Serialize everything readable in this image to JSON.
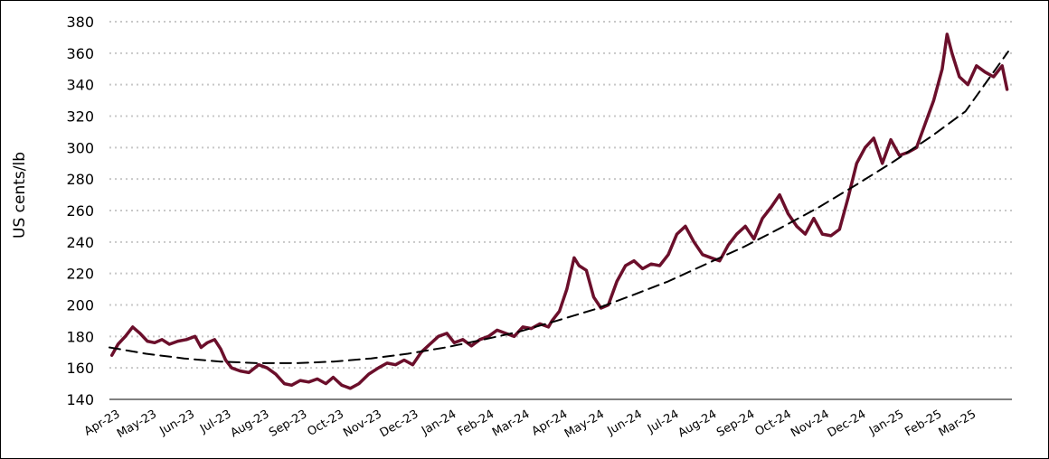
{
  "chart_data": {
    "type": "line",
    "title": "",
    "xlabel": "",
    "ylabel": "US cents/lb",
    "ylim": [
      140,
      380
    ],
    "yticks": [
      140,
      160,
      180,
      200,
      220,
      240,
      260,
      280,
      300,
      320,
      340,
      360,
      380
    ],
    "xticks": [
      "Apr-23",
      "May-23",
      "Jun-23",
      "Jul-23",
      "Aug-23",
      "Sep-23",
      "Oct-23",
      "Nov-23",
      "Dec-23",
      "Jan-24",
      "Feb-24",
      "Mar-24",
      "Apr-24",
      "May-24",
      "Jun-24",
      "Jul-24",
      "Aug-24",
      "Sep-24",
      "Oct-24",
      "Nov-24",
      "Dec-24",
      "Jan-25",
      "Feb-25",
      "Mar-25"
    ],
    "xlim": [
      "2023-04-01",
      "2025-04-08"
    ],
    "grid": "horizontal-dotted",
    "legend": "none",
    "colors": {
      "price": "#6b0f2b",
      "trend": "#000000",
      "grid": "#c8c8c8"
    },
    "series": [
      {
        "style": "solid",
        "x": [
          "2023-04-03",
          "2023-04-08",
          "2023-04-14",
          "2023-04-20",
          "2023-04-26",
          "2023-05-02",
          "2023-05-08",
          "2023-05-14",
          "2023-05-20",
          "2023-05-27",
          "2023-06-03",
          "2023-06-10",
          "2023-06-15",
          "2023-06-20",
          "2023-06-26",
          "2023-07-01",
          "2023-07-05",
          "2023-07-10",
          "2023-07-17",
          "2023-07-24",
          "2023-08-01",
          "2023-08-08",
          "2023-08-15",
          "2023-08-22",
          "2023-08-28",
          "2023-09-04",
          "2023-09-11",
          "2023-09-18",
          "2023-09-25",
          "2023-10-01",
          "2023-10-08",
          "2023-10-15",
          "2023-10-22",
          "2023-10-30",
          "2023-11-07",
          "2023-11-14",
          "2023-11-21",
          "2023-11-28",
          "2023-12-05",
          "2023-12-12",
          "2023-12-19",
          "2023-12-26",
          "2024-01-02",
          "2024-01-08",
          "2024-01-15",
          "2024-01-22",
          "2024-01-29",
          "2024-02-05",
          "2024-02-12",
          "2024-02-19",
          "2024-02-26",
          "2024-03-04",
          "2024-03-11",
          "2024-03-18",
          "2024-03-25",
          "2024-03-28",
          "2024-04-03",
          "2024-04-09",
          "2024-04-15",
          "2024-04-19",
          "2024-04-25",
          "2024-05-01",
          "2024-05-07",
          "2024-05-13",
          "2024-05-20",
          "2024-05-27",
          "2024-06-03",
          "2024-06-10",
          "2024-06-17",
          "2024-06-24",
          "2024-07-01",
          "2024-07-08",
          "2024-07-15",
          "2024-07-22",
          "2024-07-29",
          "2024-08-05",
          "2024-08-12",
          "2024-08-19",
          "2024-08-26",
          "2024-09-02",
          "2024-09-09",
          "2024-09-16",
          "2024-09-23",
          "2024-09-30",
          "2024-10-07",
          "2024-10-14",
          "2024-10-21",
          "2024-10-28",
          "2024-11-04",
          "2024-11-11",
          "2024-11-18",
          "2024-11-25",
          "2024-12-02",
          "2024-12-09",
          "2024-12-16",
          "2024-12-23",
          "2024-12-30",
          "2025-01-06",
          "2025-01-13",
          "2025-01-20",
          "2025-01-27",
          "2025-02-03",
          "2025-02-10",
          "2025-02-14",
          "2025-02-18",
          "2025-02-24",
          "2025-03-03",
          "2025-03-10",
          "2025-03-17",
          "2025-03-24",
          "2025-03-31",
          "2025-04-04"
        ],
        "values": [
          168,
          175,
          180,
          186,
          182,
          177,
          176,
          178,
          175,
          177,
          178,
          180,
          173,
          176,
          178,
          172,
          165,
          160,
          158,
          157,
          162,
          160,
          156,
          150,
          149,
          152,
          151,
          153,
          150,
          154,
          149,
          147,
          150,
          156,
          160,
          163,
          162,
          165,
          162,
          170,
          175,
          180,
          182,
          176,
          178,
          174,
          178,
          180,
          184,
          182,
          180,
          186,
          185,
          188,
          186,
          190,
          196,
          210,
          230,
          225,
          222,
          205,
          198,
          200,
          215,
          225,
          228,
          223,
          226,
          225,
          232,
          245,
          250,
          240,
          232,
          230,
          228,
          238,
          245,
          250,
          242,
          255,
          262,
          270,
          258,
          250,
          245,
          255,
          245,
          244,
          248,
          268,
          290,
          300,
          306,
          290,
          305,
          295,
          297,
          300,
          315,
          330,
          350,
          372,
          360,
          345,
          340,
          352,
          348,
          345,
          352,
          337
        ],
        "name": ""
      },
      {
        "style": "dashed",
        "x": [
          "2023-04-01",
          "2023-05-01",
          "2023-06-01",
          "2023-07-01",
          "2023-08-01",
          "2023-09-01",
          "2023-10-01",
          "2023-11-01",
          "2023-12-01",
          "2024-01-01",
          "2024-02-01",
          "2024-03-01",
          "2024-04-01",
          "2024-05-01",
          "2024-06-01",
          "2024-07-01",
          "2024-08-01",
          "2024-09-01",
          "2024-10-01",
          "2024-11-01",
          "2024-12-01",
          "2025-01-01",
          "2025-02-01",
          "2025-03-01",
          "2025-04-05"
        ],
        "values": [
          173,
          169,
          166,
          164,
          163,
          163,
          164,
          166,
          169,
          173,
          178,
          183,
          190,
          197,
          206,
          215,
          226,
          237,
          249,
          262,
          276,
          291,
          307,
          323,
          361
        ],
        "name": ""
      }
    ]
  }
}
